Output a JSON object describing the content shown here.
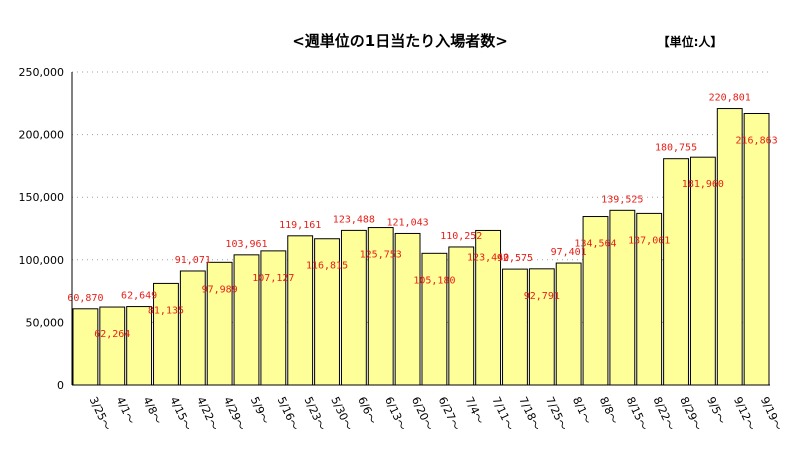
{
  "chart_data": {
    "type": "bar",
    "title": "<週単位の1日当たり入場者数>",
    "unit_label": "【単位:人】",
    "ylim": [
      0,
      250000
    ],
    "yticks": [
      "0",
      "50,000",
      "100,000",
      "150,000",
      "200,000",
      "250,000"
    ],
    "grid": true,
    "categories": [
      "3/25～",
      "4/1～",
      "4/8～",
      "4/15～",
      "4/22～",
      "4/29～",
      "5/9～",
      "5/16～",
      "5/23～",
      "5/30～",
      "6/6～",
      "6/13～",
      "6/20～",
      "6/27～",
      "7/4～",
      "7/11～",
      "7/18～",
      "7/25～",
      "8/1～",
      "8/8～",
      "8/15～",
      "8/22～",
      "8/29～",
      "9/5～",
      "9/12～",
      "9/19～"
    ],
    "values": [
      60870,
      62264,
      62649,
      81135,
      91071,
      97989,
      103961,
      107127,
      119161,
      116815,
      123488,
      125753,
      121043,
      105180,
      110252,
      123440,
      92575,
      92791,
      97401,
      134564,
      139525,
      137061,
      180755,
      181960,
      220801,
      216863
    ],
    "value_labels": [
      "60,870",
      "62,264",
      "62,649",
      "81,135",
      "91,071",
      "97,989",
      "103,961",
      "107,127",
      "119,161",
      "116,815",
      "123,488",
      "125,753",
      "121,043",
      "105,180",
      "110,252",
      "123,440",
      "92,575",
      "92,791",
      "97,401",
      "134,564",
      "139,525",
      "137,061",
      "180,755",
      "181,960",
      "220,801",
      "216,863"
    ],
    "label_position": [
      "above",
      "inside",
      "above",
      "inside",
      "above",
      "inside",
      "above",
      "inside",
      "above",
      "inside",
      "above",
      "inside",
      "above",
      "inside",
      "above",
      "inside",
      "above",
      "inside",
      "above",
      "inside",
      "above",
      "inside",
      "above",
      "inside",
      "above",
      "inside"
    ],
    "colors": {
      "bar_fill": "#ffff99",
      "bar_stroke": "#000000",
      "label": "#e8201a"
    }
  }
}
